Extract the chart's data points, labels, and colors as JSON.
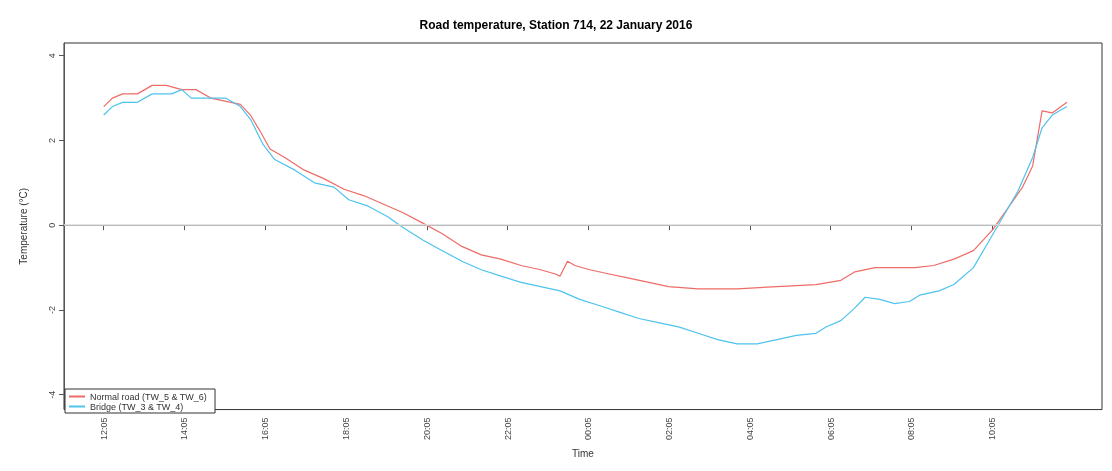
{
  "chart_data": {
    "type": "line",
    "title": "Road temperature, Station 714, 22 January 2016",
    "xlabel": "Time",
    "ylabel": "Temperature (°C)",
    "xlim": [
      "2016-01-22T11:06",
      "2016-01-23T12:48"
    ],
    "ylim": [
      -4.35,
      4.3
    ],
    "xticks": [
      {
        "value": "2016-01-22T12:05",
        "label": "12:05"
      },
      {
        "value": "2016-01-22T14:05",
        "label": "14:05"
      },
      {
        "value": "2016-01-22T16:05",
        "label": "16:05"
      },
      {
        "value": "2016-01-22T18:05",
        "label": "18:05"
      },
      {
        "value": "2016-01-22T20:05",
        "label": "20:05"
      },
      {
        "value": "2016-01-22T22:05",
        "label": "22:05"
      },
      {
        "value": "2016-01-23T00:05",
        "label": "00:05"
      },
      {
        "value": "2016-01-23T02:05",
        "label": "02:05"
      },
      {
        "value": "2016-01-23T04:05",
        "label": "04:05"
      },
      {
        "value": "2016-01-23T06:05",
        "label": "06:05"
      },
      {
        "value": "2016-01-23T08:05",
        "label": "08:05"
      },
      {
        "value": "2016-01-23T10:05",
        "label": "10:05"
      }
    ],
    "yticks": [
      -4,
      -2,
      0,
      2,
      4
    ],
    "ref_lines": [
      {
        "axis": "y",
        "value": 0,
        "color": "#dddddd"
      }
    ],
    "legend": "bottom left",
    "marker": "none",
    "line_style": "solid",
    "grid": false,
    "series": [
      {
        "name": "Normal road (TW_5 & TW_6)",
        "color": "#ef6b66",
        "x": [
          "2016-01-22T12:05",
          "2016-01-22T12:18",
          "2016-01-22T12:33",
          "2016-01-22T12:55",
          "2016-01-22T13:17",
          "2016-01-22T13:38",
          "2016-01-22T14:01",
          "2016-01-22T14:22",
          "2016-01-22T14:44",
          "2016-01-22T15:14",
          "2016-01-22T15:28",
          "2016-01-22T15:43",
          "2016-01-22T15:58",
          "2016-01-22T16:12",
          "2016-01-22T16:34",
          "2016-01-22T17:03",
          "2016-01-22T17:32",
          "2016-01-22T18:02",
          "2016-01-22T18:31",
          "2016-01-22T19:00",
          "2016-01-22T19:29",
          "2016-01-22T19:59",
          "2016-01-22T20:28",
          "2016-01-22T20:57",
          "2016-01-22T21:26",
          "2016-01-22T21:55",
          "2016-01-22T22:25",
          "2016-01-22T22:54",
          "2016-01-22T23:16",
          "2016-01-22T23:23",
          "2016-01-22T23:34",
          "2016-01-22T23:45",
          "2016-01-23T00:07",
          "2016-01-23T00:36",
          "2016-01-23T01:05",
          "2016-01-23T01:35",
          "2016-01-23T02:04",
          "2016-01-23T02:48",
          "2016-01-23T03:46",
          "2016-01-23T04:45",
          "2016-01-23T05:43",
          "2016-01-23T06:20",
          "2016-01-23T06:41",
          "2016-01-23T07:11",
          "2016-01-23T07:40",
          "2016-01-23T08:10",
          "2016-01-23T08:38",
          "2016-01-23T09:08",
          "2016-01-23T09:37",
          "2016-01-23T10:06",
          "2016-01-23T10:28",
          "2016-01-23T10:50",
          "2016-01-23T11:05",
          "2016-01-23T11:19",
          "2016-01-23T11:34",
          "2016-01-23T11:56"
        ],
        "values": [
          2.8,
          3.0,
          3.1,
          3.1,
          3.3,
          3.3,
          3.2,
          3.2,
          3.0,
          2.9,
          2.85,
          2.6,
          2.2,
          1.8,
          1.6,
          1.3,
          1.1,
          0.85,
          0.7,
          0.5,
          0.3,
          0.05,
          -0.2,
          -0.5,
          -0.7,
          -0.8,
          -0.95,
          -1.05,
          -1.15,
          -1.2,
          -0.85,
          -0.95,
          -1.05,
          -1.15,
          -1.25,
          -1.35,
          -1.45,
          -1.5,
          -1.5,
          -1.45,
          -1.4,
          -1.3,
          -1.1,
          -1.0,
          -1.0,
          -1.0,
          -0.95,
          -0.8,
          -0.6,
          -0.1,
          0.4,
          0.9,
          1.4,
          2.7,
          2.65,
          2.9
        ]
      },
      {
        "name": "Bridge (TW_3 & TW_4)",
        "color": "#4dc3ee",
        "x": [
          "2016-01-22T12:05",
          "2016-01-22T12:18",
          "2016-01-22T12:33",
          "2016-01-22T12:55",
          "2016-01-22T13:17",
          "2016-01-22T13:46",
          "2016-01-22T14:01",
          "2016-01-22T14:15",
          "2016-01-22T15:06",
          "2016-01-22T15:28",
          "2016-01-22T15:43",
          "2016-01-22T16:02",
          "2016-01-22T16:19",
          "2016-01-22T16:49",
          "2016-01-22T17:18",
          "2016-01-22T17:47",
          "2016-01-22T18:09",
          "2016-01-22T18:38",
          "2016-01-22T19:07",
          "2016-01-22T19:29",
          "2016-01-22T19:59",
          "2016-01-22T20:28",
          "2016-01-22T20:57",
          "2016-01-22T21:26",
          "2016-01-22T21:55",
          "2016-01-22T22:25",
          "2016-01-22T22:54",
          "2016-01-22T23:23",
          "2016-01-22T23:52",
          "2016-01-23T00:22",
          "2016-01-23T00:51",
          "2016-01-23T01:20",
          "2016-01-23T01:49",
          "2016-01-23T02:19",
          "2016-01-23T02:48",
          "2016-01-23T03:17",
          "2016-01-23T03:46",
          "2016-01-23T04:16",
          "2016-01-23T04:45",
          "2016-01-23T05:14",
          "2016-01-23T05:43",
          "2016-01-23T05:58",
          "2016-01-23T06:20",
          "2016-01-23T06:41",
          "2016-01-23T06:56",
          "2016-01-23T07:18",
          "2016-01-23T07:40",
          "2016-01-23T08:02",
          "2016-01-23T08:17",
          "2016-01-23T08:46",
          "2016-01-23T09:08",
          "2016-01-23T09:37",
          "2016-01-23T09:59",
          "2016-01-23T10:21",
          "2016-01-23T10:43",
          "2016-01-23T11:05",
          "2016-01-23T11:19",
          "2016-01-23T11:34",
          "2016-01-23T11:56"
        ],
        "values": [
          2.6,
          2.8,
          2.9,
          2.9,
          3.1,
          3.1,
          3.2,
          3.0,
          3.0,
          2.8,
          2.5,
          1.9,
          1.55,
          1.3,
          1.0,
          0.9,
          0.6,
          0.45,
          0.2,
          -0.05,
          -0.35,
          -0.6,
          -0.85,
          -1.05,
          -1.2,
          -1.35,
          -1.45,
          -1.55,
          -1.75,
          -1.9,
          -2.05,
          -2.2,
          -2.3,
          -2.4,
          -2.55,
          -2.7,
          -2.8,
          -2.8,
          -2.7,
          -2.6,
          -2.55,
          -2.4,
          -2.25,
          -1.95,
          -1.7,
          -1.75,
          -1.85,
          -1.8,
          -1.65,
          -1.55,
          -1.4,
          -1.0,
          -0.4,
          0.2,
          0.8,
          1.6,
          2.3,
          2.6,
          2.8
        ]
      }
    ]
  }
}
